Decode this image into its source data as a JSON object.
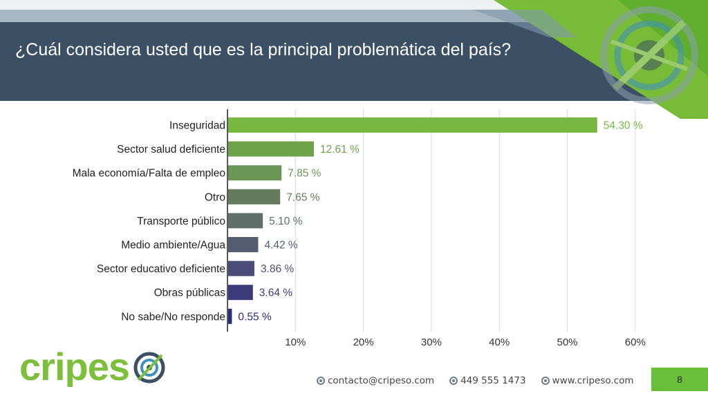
{
  "slide": {
    "title": "¿Cuál considera usted que es la principal problemática del país?",
    "page_number": "8"
  },
  "brand": {
    "logo_text": "cripes",
    "color_green": "#7bbf3a",
    "color_navy": "#3b5064"
  },
  "footer": {
    "email": "contacto@cripeso.com",
    "phone": "449 555 1473",
    "website": "www.cripeso.com"
  },
  "chart_data": {
    "type": "bar",
    "orientation": "horizontal",
    "categories": [
      "Inseguridad",
      "Sector salud deficiente",
      "Mala economía/Falta de empleo",
      "Otro",
      "Transporte público",
      "Medio ambiente/Agua",
      "Sector educativo deficiente",
      "Obras públicas",
      "No sabe/No responde"
    ],
    "values": [
      54.3,
      12.61,
      7.85,
      7.65,
      5.1,
      4.42,
      3.86,
      3.64,
      0.55
    ],
    "value_labels": [
      "54.30 %",
      "12.61 %",
      "7.85 %",
      "7.65 %",
      "5.10 %",
      "4.42 %",
      "3.86 %",
      "3.64 %",
      "0.55 %"
    ],
    "colors": [
      "#77b843",
      "#6ea24a",
      "#6b9554",
      "#647c5c",
      "#606f6a",
      "#555d72",
      "#4c4c79",
      "#3d3a7c",
      "#2a2a80"
    ],
    "xlim": [
      0,
      60
    ],
    "ticks": [
      10,
      20,
      30,
      40,
      50,
      60
    ],
    "tick_labels": [
      "10%",
      "20%",
      "30%",
      "40%",
      "50%",
      "60%"
    ],
    "grid": true,
    "title": "",
    "xlabel": "",
    "ylabel": ""
  }
}
